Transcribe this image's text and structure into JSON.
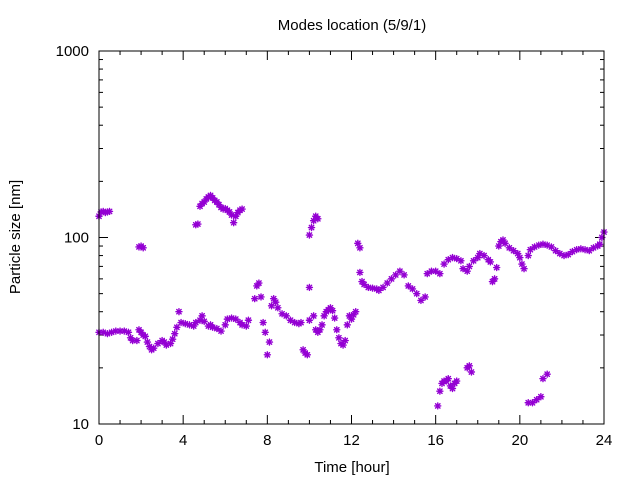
{
  "chart_data": {
    "type": "scatter",
    "title": "Modes location (5/9/1)",
    "xlabel": "Time [hour]",
    "ylabel": "Particle size [nm]",
    "xlim": [
      0,
      24
    ],
    "ylim": [
      10,
      1000
    ],
    "yscale": "log",
    "grid": false,
    "legend": "none",
    "marker": "*",
    "color": "#9400d3",
    "x_ticks": [
      "0",
      "4",
      "8",
      "12",
      "16",
      "20",
      "24"
    ],
    "y_ticks": [
      "10",
      "100",
      "1000"
    ],
    "series": [
      {
        "name": "",
        "points": [
          [
            0.0,
            130
          ],
          [
            0.1,
            137
          ],
          [
            0.2,
            138
          ],
          [
            0.3,
            136
          ],
          [
            0.4,
            137
          ],
          [
            0.5,
            138
          ],
          [
            0.0,
            31
          ],
          [
            0.2,
            31
          ],
          [
            0.4,
            30.5
          ],
          [
            0.6,
            31
          ],
          [
            0.8,
            31.5
          ],
          [
            1.0,
            31.5
          ],
          [
            1.2,
            31.5
          ],
          [
            1.4,
            31
          ],
          [
            1.5,
            29
          ],
          [
            1.6,
            28
          ],
          [
            1.8,
            28
          ],
          [
            1.9,
            32
          ],
          [
            2.0,
            31
          ],
          [
            2.1,
            30
          ],
          [
            2.2,
            29.5
          ],
          [
            2.3,
            27.5
          ],
          [
            2.4,
            26
          ],
          [
            2.5,
            25
          ],
          [
            2.6,
            25.5
          ],
          [
            2.8,
            27
          ],
          [
            3.0,
            28
          ],
          [
            3.1,
            27.5
          ],
          [
            3.2,
            26.5
          ],
          [
            3.4,
            27
          ],
          [
            3.5,
            28.5
          ],
          [
            3.6,
            30.5
          ],
          [
            3.7,
            33
          ],
          [
            1.9,
            89
          ],
          [
            2.0,
            90
          ],
          [
            2.1,
            88
          ],
          [
            3.8,
            40
          ],
          [
            3.9,
            35
          ],
          [
            4.1,
            34.5
          ],
          [
            4.3,
            34
          ],
          [
            4.5,
            33.5
          ],
          [
            4.6,
            35
          ],
          [
            4.8,
            36
          ],
          [
            4.9,
            38
          ],
          [
            5.0,
            35.5
          ],
          [
            5.2,
            33.5
          ],
          [
            5.3,
            34
          ],
          [
            5.4,
            33
          ],
          [
            5.6,
            32.5
          ],
          [
            5.8,
            31.5
          ],
          [
            6.0,
            34
          ],
          [
            6.1,
            36.5
          ],
          [
            6.3,
            37
          ],
          [
            6.5,
            36.5
          ],
          [
            6.7,
            35
          ],
          [
            6.8,
            34
          ],
          [
            7.0,
            33.5
          ],
          [
            7.1,
            36
          ],
          [
            4.6,
            117
          ],
          [
            4.7,
            118
          ],
          [
            4.8,
            147
          ],
          [
            4.9,
            152
          ],
          [
            5.0,
            155
          ],
          [
            5.1,
            161
          ],
          [
            5.2,
            165
          ],
          [
            5.3,
            168
          ],
          [
            5.4,
            163
          ],
          [
            5.5,
            158
          ],
          [
            5.6,
            155
          ],
          [
            5.7,
            150
          ],
          [
            5.8,
            145
          ],
          [
            5.9,
            142
          ],
          [
            6.0,
            143
          ],
          [
            6.1,
            140
          ],
          [
            6.2,
            137
          ],
          [
            6.3,
            132
          ],
          [
            6.4,
            120
          ],
          [
            6.5,
            130
          ],
          [
            6.6,
            136
          ],
          [
            6.7,
            140
          ],
          [
            6.8,
            142
          ],
          [
            7.4,
            47
          ],
          [
            7.5,
            55
          ],
          [
            7.6,
            57
          ],
          [
            7.7,
            48
          ],
          [
            7.8,
            35
          ],
          [
            7.9,
            31
          ],
          [
            8.0,
            23.5
          ],
          [
            8.1,
            27.5
          ],
          [
            8.2,
            43
          ],
          [
            8.3,
            47
          ],
          [
            8.4,
            45
          ],
          [
            8.5,
            42
          ],
          [
            8.7,
            39
          ],
          [
            8.9,
            38
          ],
          [
            9.1,
            36
          ],
          [
            9.3,
            35
          ],
          [
            9.5,
            34.5
          ],
          [
            9.6,
            35
          ],
          [
            9.7,
            25
          ],
          [
            9.8,
            24
          ],
          [
            9.9,
            23.5
          ],
          [
            10.0,
            36
          ],
          [
            10.2,
            38
          ],
          [
            10.3,
            32
          ],
          [
            10.4,
            31
          ],
          [
            10.5,
            32
          ],
          [
            10.6,
            34
          ],
          [
            10.7,
            38
          ],
          [
            10.8,
            40
          ],
          [
            10.9,
            41
          ],
          [
            11.0,
            42
          ],
          [
            11.1,
            40.5
          ],
          [
            11.2,
            37
          ],
          [
            11.3,
            32
          ],
          [
            11.4,
            29
          ],
          [
            11.5,
            27
          ],
          [
            11.6,
            26.5
          ],
          [
            11.7,
            28
          ],
          [
            11.8,
            34
          ],
          [
            11.9,
            38
          ],
          [
            12.0,
            36.5
          ],
          [
            12.1,
            38.5
          ],
          [
            12.2,
            40
          ],
          [
            10.0,
            54
          ],
          [
            10.0,
            103
          ],
          [
            10.1,
            113
          ],
          [
            10.2,
            123
          ],
          [
            10.3,
            130
          ],
          [
            10.4,
            126
          ],
          [
            12.3,
            93
          ],
          [
            12.4,
            88
          ],
          [
            12.4,
            65
          ],
          [
            12.5,
            58
          ],
          [
            12.6,
            56
          ],
          [
            12.8,
            54
          ],
          [
            13.0,
            53.5
          ],
          [
            13.2,
            53
          ],
          [
            13.3,
            52
          ],
          [
            13.5,
            54
          ],
          [
            13.7,
            57
          ],
          [
            13.9,
            60
          ],
          [
            14.1,
            63
          ],
          [
            14.3,
            66
          ],
          [
            14.5,
            63
          ],
          [
            14.7,
            55
          ],
          [
            14.9,
            53
          ],
          [
            15.1,
            50
          ],
          [
            15.3,
            46
          ],
          [
            15.5,
            48
          ],
          [
            15.6,
            64
          ],
          [
            15.8,
            66
          ],
          [
            16.0,
            66
          ],
          [
            16.2,
            64
          ],
          [
            16.4,
            72
          ],
          [
            16.6,
            76
          ],
          [
            16.8,
            78
          ],
          [
            17.0,
            77
          ],
          [
            17.2,
            75
          ],
          [
            17.3,
            68
          ],
          [
            17.5,
            66
          ],
          [
            17.6,
            70
          ],
          [
            17.8,
            75
          ],
          [
            18.0,
            78
          ],
          [
            18.1,
            82
          ],
          [
            18.3,
            80
          ],
          [
            18.5,
            76
          ],
          [
            18.6,
            74
          ],
          [
            18.7,
            58
          ],
          [
            18.8,
            60
          ],
          [
            18.9,
            69
          ],
          [
            19.0,
            90
          ],
          [
            19.1,
            95
          ],
          [
            19.2,
            97
          ],
          [
            19.3,
            93
          ],
          [
            19.5,
            88
          ],
          [
            19.7,
            85
          ],
          [
            19.9,
            82
          ],
          [
            20.0,
            78
          ],
          [
            20.1,
            72
          ],
          [
            20.2,
            68
          ],
          [
            20.4,
            80
          ],
          [
            20.5,
            86
          ],
          [
            20.7,
            89
          ],
          [
            20.9,
            91
          ],
          [
            21.1,
            92
          ],
          [
            21.3,
            91
          ],
          [
            21.5,
            89
          ],
          [
            21.7,
            85
          ],
          [
            21.9,
            82
          ],
          [
            22.1,
            80
          ],
          [
            22.3,
            81
          ],
          [
            22.5,
            84
          ],
          [
            22.7,
            86
          ],
          [
            22.9,
            87
          ],
          [
            23.1,
            86
          ],
          [
            23.3,
            85
          ],
          [
            23.5,
            88
          ],
          [
            23.7,
            90
          ],
          [
            23.8,
            92
          ],
          [
            23.9,
            100
          ],
          [
            24.0,
            107
          ],
          [
            16.1,
            12.5
          ],
          [
            16.2,
            15
          ],
          [
            16.3,
            16.5
          ],
          [
            16.4,
            17
          ],
          [
            16.5,
            17
          ],
          [
            16.6,
            17.5
          ],
          [
            16.7,
            16
          ],
          [
            16.8,
            15.5
          ],
          [
            16.9,
            16.5
          ],
          [
            17.0,
            17
          ],
          [
            17.5,
            20
          ],
          [
            17.6,
            20.5
          ],
          [
            17.7,
            19
          ],
          [
            20.4,
            13
          ],
          [
            20.6,
            13
          ],
          [
            20.8,
            13.5
          ],
          [
            21.0,
            14
          ],
          [
            21.1,
            17.5
          ],
          [
            21.3,
            18.5
          ]
        ]
      }
    ]
  }
}
